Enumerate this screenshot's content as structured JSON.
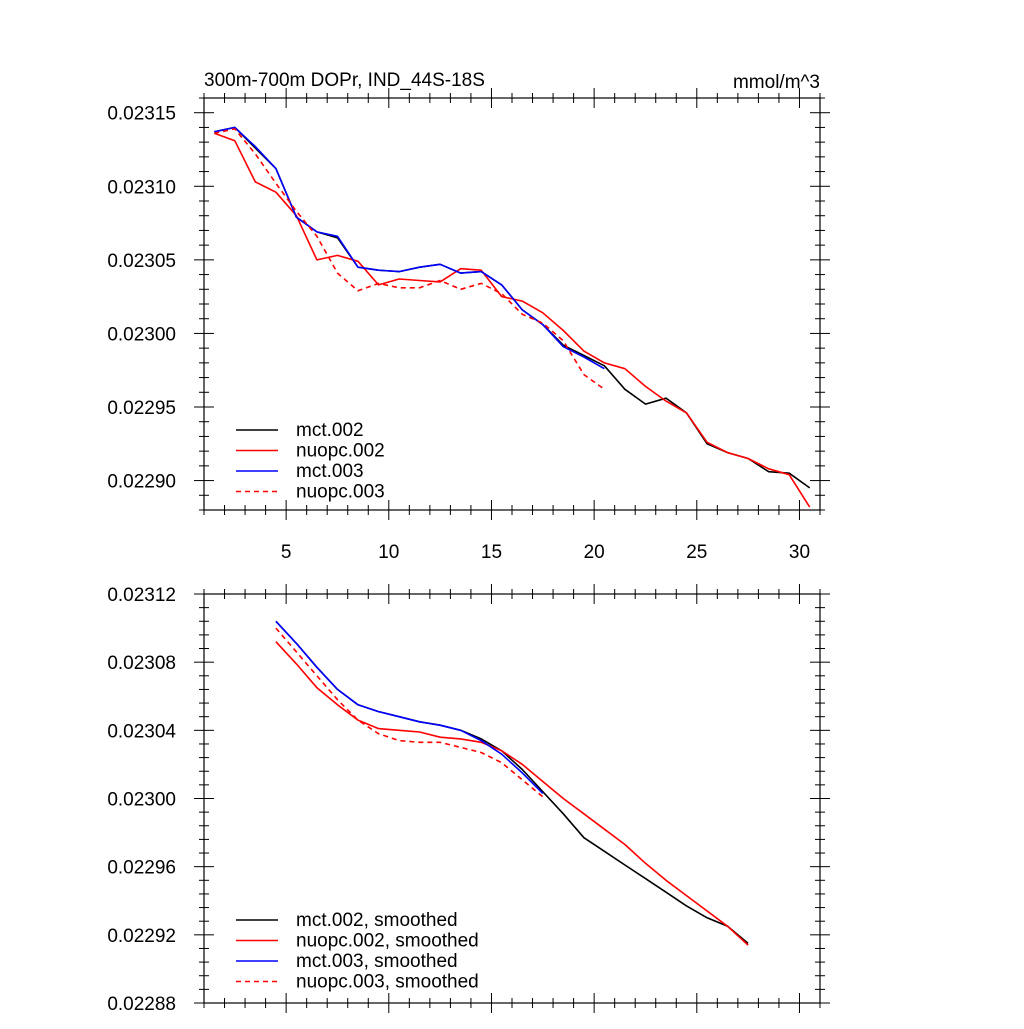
{
  "chart_data": [
    {
      "type": "line",
      "title": "300m-700m DOPr, IND_44S-18S",
      "units": "mmol/m^3",
      "xlim": [
        1,
        31
      ],
      "ylim": [
        0.02288,
        0.02316
      ],
      "x_ticks": [
        5,
        10,
        15,
        20,
        25,
        30
      ],
      "x_tick_labels": [
        "5",
        "10",
        "15",
        "20",
        "25",
        "30"
      ],
      "y_ticks": [
        0.0229,
        0.02295,
        0.023,
        0.02305,
        0.0231,
        0.02315
      ],
      "y_tick_labels": [
        "0.02290",
        "0.02295",
        "0.02300",
        "0.02305",
        "0.02310",
        "0.02315"
      ],
      "legend": "bottom-left",
      "series": [
        {
          "name": "mct.002",
          "color": "#000000",
          "dash": "solid",
          "x": [
            1.5,
            2.5,
            3.5,
            4.5,
            5.5,
            6.5,
            7.5,
            8.5,
            9.5,
            10.5,
            11.5,
            12.5,
            13.5,
            14.5,
            15.5,
            16.5,
            17.5,
            18.5,
            19.5,
            20.5,
            21.5,
            22.5,
            23.5,
            24.5,
            25.5,
            26.5,
            27.5,
            28.5,
            29.5,
            30.5
          ],
          "y": [
            0.023137,
            0.02314,
            0.023126,
            0.023112,
            0.023079,
            0.023069,
            0.023065,
            0.023045,
            0.023043,
            0.023042,
            0.023045,
            0.023047,
            0.023041,
            0.023042,
            0.023033,
            0.023016,
            0.023006,
            0.022992,
            0.022985,
            0.022978,
            0.022962,
            0.022952,
            0.022956,
            0.022946,
            0.022925,
            0.022919,
            0.022915,
            0.022906,
            0.022905,
            0.022895
          ]
        },
        {
          "name": "nuopc.002",
          "color": "#ff0000",
          "dash": "solid",
          "x": [
            1.5,
            2.5,
            3.5,
            4.5,
            5.5,
            6.5,
            7.5,
            8.5,
            9.5,
            10.5,
            11.5,
            12.5,
            13.5,
            14.5,
            15.5,
            16.5,
            17.5,
            18.5,
            19.5,
            20.5,
            21.5,
            22.5,
            23.5,
            24.5,
            25.5,
            26.5,
            27.5,
            28.5,
            29.5,
            30.5
          ],
          "y": [
            0.023136,
            0.023131,
            0.023103,
            0.023096,
            0.02308,
            0.02305,
            0.023053,
            0.023049,
            0.023033,
            0.023037,
            0.023036,
            0.023035,
            0.023044,
            0.023043,
            0.023025,
            0.023022,
            0.023014,
            0.023002,
            0.022988,
            0.02298,
            0.022976,
            0.022964,
            0.022954,
            0.022946,
            0.022926,
            0.022919,
            0.022915,
            0.022908,
            0.022904,
            0.022882
          ]
        },
        {
          "name": "mct.003",
          "color": "#0000ff",
          "dash": "solid",
          "x": [
            1.5,
            2.5,
            3.5,
            4.5,
            5.5,
            6.5,
            7.5,
            8.5,
            9.5,
            10.5,
            11.5,
            12.5,
            13.5,
            14.5,
            15.5,
            16.5,
            17.5,
            18.5,
            19.5,
            20.5
          ],
          "y": [
            0.023137,
            0.02314,
            0.023127,
            0.023112,
            0.023079,
            0.023069,
            0.023066,
            0.023045,
            0.023043,
            0.023042,
            0.023045,
            0.023047,
            0.023041,
            0.023042,
            0.023033,
            0.023016,
            0.023006,
            0.022991,
            0.022984,
            0.022976
          ]
        },
        {
          "name": "nuopc.003",
          "color": "#ff0000",
          "dash": "dashed",
          "x": [
            1.5,
            2.5,
            3.5,
            4.5,
            5.5,
            6.5,
            7.5,
            8.5,
            9.5,
            10.5,
            11.5,
            12.5,
            13.5,
            14.5,
            15.5,
            16.5,
            17.5,
            18.5,
            19.5,
            20.5
          ],
          "y": [
            0.023136,
            0.023139,
            0.023122,
            0.023102,
            0.023083,
            0.023066,
            0.023041,
            0.023029,
            0.023034,
            0.023031,
            0.023031,
            0.023036,
            0.02303,
            0.023034,
            0.023027,
            0.023013,
            0.023007,
            0.022995,
            0.022972,
            0.022962
          ]
        }
      ]
    },
    {
      "type": "line",
      "xlim": [
        1,
        31
      ],
      "ylim": [
        0.02288,
        0.02312
      ],
      "x_ticks": [
        5,
        10,
        15,
        20,
        25,
        30
      ],
      "y_ticks": [
        0.02288,
        0.02292,
        0.02296,
        0.023,
        0.02304,
        0.02308,
        0.02312
      ],
      "y_tick_labels": [
        "0.02288",
        "0.02292",
        "0.02296",
        "0.02300",
        "0.02304",
        "0.02308",
        "0.02312"
      ],
      "legend": "bottom-left",
      "series": [
        {
          "name": "mct.002, smoothed",
          "color": "#000000",
          "dash": "solid",
          "x": [
            4.5,
            5.5,
            6.5,
            7.5,
            8.5,
            9.5,
            10.5,
            11.5,
            12.5,
            13.5,
            14.5,
            15.5,
            16.5,
            17.5,
            18.5,
            19.5,
            20.5,
            21.5,
            22.5,
            23.5,
            24.5,
            25.5,
            26.5,
            27.5
          ],
          "y": [
            0.023104,
            0.023091,
            0.023077,
            0.023064,
            0.023055,
            0.023051,
            0.023048,
            0.023045,
            0.023043,
            0.02304,
            0.023035,
            0.023028,
            0.023017,
            0.023004,
            0.022991,
            0.022977,
            0.022969,
            0.022961,
            0.022953,
            0.022945,
            0.022937,
            0.02293,
            0.022925,
            0.022915
          ]
        },
        {
          "name": "nuopc.002, smoothed",
          "color": "#ff0000",
          "dash": "solid",
          "x": [
            4.5,
            5.5,
            6.5,
            7.5,
            8.5,
            9.5,
            10.5,
            11.5,
            12.5,
            13.5,
            14.5,
            15.5,
            16.5,
            17.5,
            18.5,
            19.5,
            20.5,
            21.5,
            22.5,
            23.5,
            24.5,
            25.5,
            26.5,
            27.5
          ],
          "y": [
            0.023092,
            0.023079,
            0.023065,
            0.023055,
            0.023046,
            0.023041,
            0.02304,
            0.023039,
            0.023036,
            0.023035,
            0.023033,
            0.023028,
            0.02302,
            0.02301,
            0.023,
            0.022991,
            0.022982,
            0.022973,
            0.022962,
            0.022952,
            0.022943,
            0.022934,
            0.022925,
            0.022914
          ]
        },
        {
          "name": "mct.003, smoothed",
          "color": "#0000ff",
          "dash": "solid",
          "x": [
            4.5,
            5.5,
            6.5,
            7.5,
            8.5,
            9.5,
            10.5,
            11.5,
            12.5,
            13.5,
            14.5,
            15.5,
            16.5,
            17.5
          ],
          "y": [
            0.023104,
            0.023091,
            0.023077,
            0.023064,
            0.023055,
            0.023051,
            0.023048,
            0.023045,
            0.023043,
            0.02304,
            0.023034,
            0.023026,
            0.023015,
            0.023003
          ]
        },
        {
          "name": "nuopc.003, smoothed",
          "color": "#ff0000",
          "dash": "dashed",
          "x": [
            4.5,
            5.5,
            6.5,
            7.5,
            8.5,
            9.5,
            10.5,
            11.5,
            12.5,
            13.5,
            14.5,
            15.5,
            16.5,
            17.5
          ],
          "y": [
            0.0231,
            0.023086,
            0.023072,
            0.023058,
            0.023046,
            0.023038,
            0.023034,
            0.023033,
            0.023033,
            0.02303,
            0.023027,
            0.023021,
            0.023011,
            0.023001
          ]
        }
      ]
    }
  ]
}
